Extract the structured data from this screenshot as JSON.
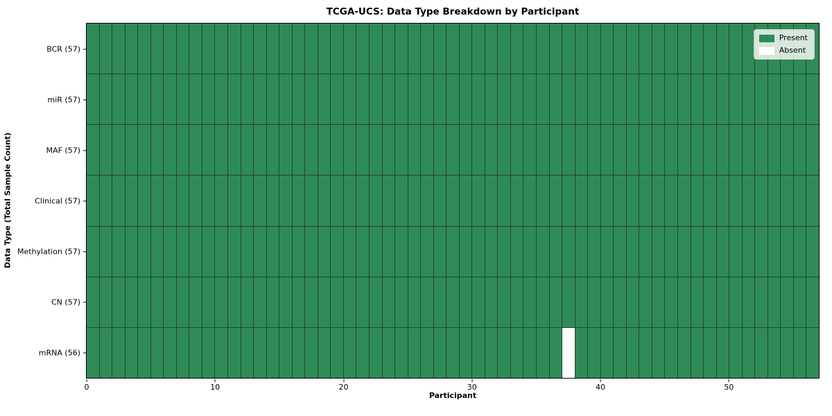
{
  "chart_data": {
    "type": "heatmap",
    "title": "TCGA-UCS: Data Type Breakdown by Participant",
    "xlabel": "Participant",
    "ylabel": "Data Type (Total Sample Count)",
    "x_range": [
      0,
      57
    ],
    "x_ticks": [
      0,
      10,
      20,
      30,
      40,
      50
    ],
    "n_participants": 57,
    "rows": [
      {
        "label": "BCR (57)",
        "data_type": "BCR",
        "present_count": 57,
        "absent_participants": []
      },
      {
        "label": "miR (57)",
        "data_type": "miR",
        "present_count": 57,
        "absent_participants": []
      },
      {
        "label": "MAF (57)",
        "data_type": "MAF",
        "present_count": 57,
        "absent_participants": []
      },
      {
        "label": "Clinical (57)",
        "data_type": "Clinical",
        "present_count": 57,
        "absent_participants": []
      },
      {
        "label": "Methylation (57)",
        "data_type": "Methylation",
        "present_count": 57,
        "absent_participants": []
      },
      {
        "label": "CN (57)",
        "data_type": "CN",
        "present_count": 57,
        "absent_participants": []
      },
      {
        "label": "mRNA (56)",
        "data_type": "mRNA",
        "present_count": 56,
        "absent_participants": [
          37
        ]
      }
    ],
    "legend": {
      "position": "upper right",
      "entries": [
        {
          "label": "Present",
          "color": "#2e8b57"
        },
        {
          "label": "Absent",
          "color": "#ffffff"
        }
      ]
    },
    "colors": {
      "present": "#2e8b57",
      "absent": "#ffffff",
      "cell_edge": "#26432f",
      "spine": "#000000"
    },
    "grid": true
  }
}
